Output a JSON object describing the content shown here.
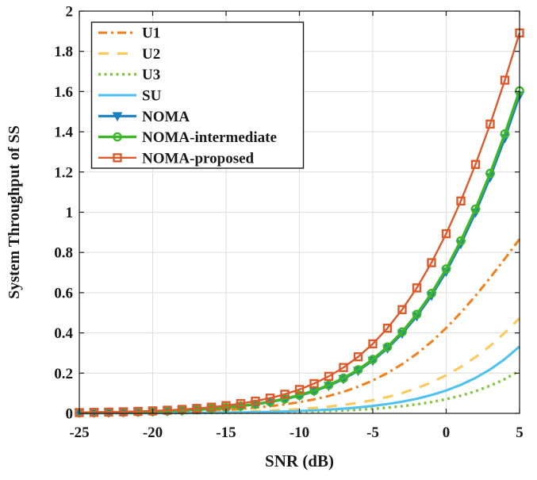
{
  "figure": {
    "background": "#ffffff",
    "title": ""
  },
  "chart_data": {
    "type": "line",
    "title": "",
    "xlabel": "SNR (dB)",
    "ylabel": "System Throughput of SS",
    "xlim": [
      -25,
      5
    ],
    "ylim": [
      0,
      2
    ],
    "xticks": [
      -25,
      -20,
      -15,
      -10,
      -5,
      0,
      5
    ],
    "yticks": [
      0,
      0.2,
      0.4,
      0.6,
      0.8,
      1,
      1.2,
      1.4,
      1.6,
      1.8,
      2
    ],
    "grid": true,
    "grid_color": "#e0e0e0",
    "axis_color": "#1a1a1a",
    "legend_position": "top-left",
    "marker_step_db": 1,
    "x": [
      -25,
      -24,
      -23,
      -22,
      -21,
      -20,
      -19,
      -18,
      -17,
      -16,
      -15,
      -14,
      -13,
      -12,
      -11,
      -10,
      -9,
      -8,
      -7,
      -6,
      -5,
      -4,
      -3,
      -2,
      -1,
      0,
      1,
      2,
      3,
      4,
      5
    ],
    "series": [
      {
        "name": "U1",
        "color": "#F28220",
        "line": "dashdot",
        "marker": "none",
        "values": [
          0.0018,
          0.0023,
          0.0029,
          0.0036,
          0.0046,
          0.0058,
          0.0072,
          0.0091,
          0.0114,
          0.0144,
          0.018,
          0.0226,
          0.0284,
          0.0356,
          0.0445,
          0.0557,
          0.0694,
          0.0864,
          0.1072,
          0.1327,
          0.1634,
          0.2005,
          0.2448,
          0.2962,
          0.3557,
          0.4244,
          0.5007,
          0.5844,
          0.6744,
          0.7692,
          0.8662
        ]
      },
      {
        "name": "U2",
        "color": "#FBC95C",
        "line": "dashed",
        "marker": "none",
        "values": [
          0.0007,
          0.0009,
          0.0011,
          0.0014,
          0.0017,
          0.0022,
          0.0027,
          0.0034,
          0.0043,
          0.0054,
          0.0068,
          0.0086,
          0.0108,
          0.0135,
          0.017,
          0.0213,
          0.0268,
          0.0335,
          0.042,
          0.0524,
          0.0654,
          0.0815,
          0.1011,
          0.125,
          0.1539,
          0.1892,
          0.2309,
          0.2796,
          0.3357,
          0.4013,
          0.4735
        ]
      },
      {
        "name": "U3",
        "color": "#86C440",
        "line": "dotted",
        "marker": "none",
        "values": [
          0.0002,
          0.0003,
          0.0004,
          0.0005,
          0.0006,
          0.0007,
          0.0009,
          0.0011,
          0.0014,
          0.0018,
          0.0023,
          0.0029,
          0.0036,
          0.0045,
          0.0057,
          0.0072,
          0.0091,
          0.0114,
          0.0143,
          0.018,
          0.0226,
          0.0284,
          0.0357,
          0.0448,
          0.0562,
          0.0704,
          0.0881,
          0.11,
          0.1372,
          0.1707,
          0.2118
        ]
      },
      {
        "name": "SU",
        "color": "#4FC2EF",
        "line": "solid",
        "marker": "none",
        "values": [
          0.0004,
          0.0005,
          0.0006,
          0.0007,
          0.0009,
          0.0012,
          0.0015,
          0.0019,
          0.0024,
          0.003,
          0.0037,
          0.0047,
          0.0059,
          0.0074,
          0.0094,
          0.0118,
          0.0148,
          0.0186,
          0.0234,
          0.0294,
          0.0369,
          0.0463,
          0.058,
          0.0726,
          0.091,
          0.1137,
          0.1417,
          0.1763,
          0.2186,
          0.2702,
          0.3327
        ]
      },
      {
        "name": "NOMA",
        "color": "#1B7EC2",
        "line": "solid",
        "marker": "triangle-down-filled",
        "values": [
          0.0029,
          0.0036,
          0.0045,
          0.0057,
          0.0072,
          0.0091,
          0.0114,
          0.0143,
          0.018,
          0.0226,
          0.0284,
          0.0357,
          0.0448,
          0.0562,
          0.0704,
          0.0881,
          0.1101,
          0.1373,
          0.1708,
          0.212,
          0.2623,
          0.3234,
          0.397,
          0.4831,
          0.5854,
          0.705,
          0.8425,
          0.9989,
          1.1745,
          1.3688,
          1.5813
        ]
      },
      {
        "name": "NOMA-intermediate",
        "color": "#3DB629",
        "line": "solid",
        "marker": "circle-open",
        "values": [
          0.0029,
          0.0037,
          0.0047,
          0.0059,
          0.0074,
          0.0093,
          0.0117,
          0.0147,
          0.0184,
          0.0232,
          0.0291,
          0.0365,
          0.0459,
          0.0576,
          0.0721,
          0.0902,
          0.1126,
          0.1404,
          0.1747,
          0.2167,
          0.268,
          0.3302,
          0.405,
          0.4925,
          0.5964,
          0.7181,
          0.8576,
          1.016,
          1.1935,
          1.3897,
          1.604
        ]
      },
      {
        "name": "NOMA-proposed",
        "color": "#DD5A2D",
        "line": "solid",
        "marker": "square-open",
        "values": [
          0.0039,
          0.0049,
          0.0062,
          0.0078,
          0.0098,
          0.0123,
          0.0155,
          0.0195,
          0.0245,
          0.0307,
          0.0386,
          0.0484,
          0.0607,
          0.076,
          0.095,
          0.1186,
          0.1479,
          0.184,
          0.2279,
          0.2812,
          0.3455,
          0.4235,
          0.5157,
          0.6238,
          0.7493,
          0.8931,
          1.0559,
          1.2377,
          1.4383,
          1.6566,
          1.8915
        ]
      }
    ]
  }
}
